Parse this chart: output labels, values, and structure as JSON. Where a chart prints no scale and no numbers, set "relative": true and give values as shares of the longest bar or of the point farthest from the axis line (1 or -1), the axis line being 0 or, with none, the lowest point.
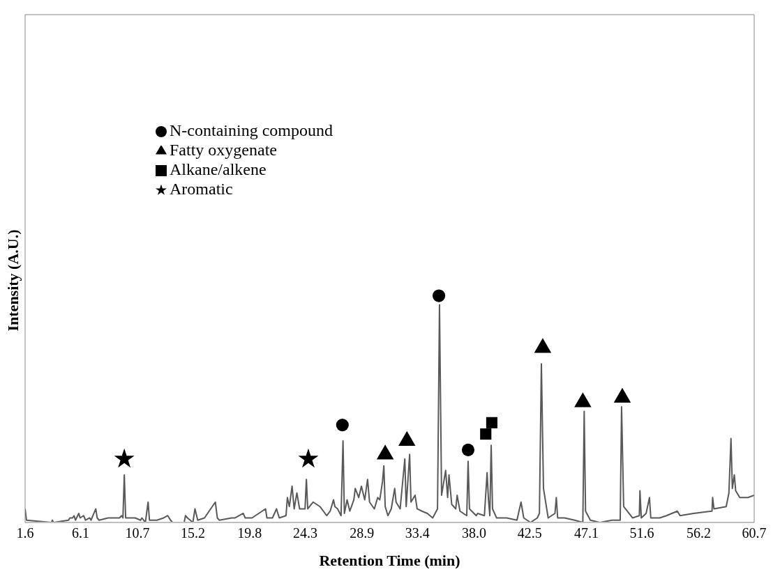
{
  "chart_data": {
    "type": "line",
    "xlabel": "Retention Time (min)",
    "ylabel": "Intensity (A.U.)",
    "relative": true,
    "grid": false,
    "legend": "top left",
    "xlim": [
      1.6,
      60.7
    ],
    "xticks": [
      1.6,
      6.1,
      10.7,
      15.2,
      19.8,
      24.3,
      28.9,
      33.4,
      {
        "value": 38,
        "label": "38.0"
      },
      42.5,
      47.1,
      51.6,
      56.2,
      60.7
    ],
    "series": [
      {
        "color": "#595959",
        "marker": "none",
        "x": [
          1.6,
          1.71,
          3.75,
          3.8,
          3.91,
          5.12,
          5.23,
          5.45,
          5.57,
          5.68,
          5.95,
          6.06,
          6.34,
          6.5,
          6.83,
          6.94,
          7.33,
          7.44,
          7.6,
          8.32,
          8.54,
          9.25,
          9.42,
          9.53,
          9.64,
          9.75,
          10.08,
          10.52,
          10.96,
          11.07,
          11.35,
          11.57,
          11.68,
          12.28,
          12.83,
          13.16,
          13.39,
          13.55,
          14.49,
          14.6,
          14.76,
          15.2,
          15.37,
          15.59,
          16.14,
          17.02,
          17.18,
          17.35,
          18.34,
          18.62,
          19.28,
          19.44,
          19.99,
          21.09,
          21.2,
          21.65,
          21.98,
          22.2,
          22.75,
          22.86,
          23.02,
          23.24,
          23.41,
          23.63,
          23.85,
          24.29,
          24.4,
          24.51,
          24.95,
          25.5,
          26.05,
          26.33,
          26.6,
          26.71,
          26.93,
          27.21,
          27.37,
          27.48,
          27.7,
          27.92,
          28.25,
          28.36,
          28.64,
          28.86,
          29.13,
          29.36,
          29.52,
          29.91,
          30.18,
          30.35,
          30.57,
          30.68,
          30.79,
          31.01,
          31.28,
          31.56,
          31.67,
          32,
          32.38,
          32.49,
          32.77,
          32.88,
          33.21,
          33.38,
          33.76,
          34.2,
          34.64,
          35.03,
          35.19,
          35.36,
          35.69,
          35.85,
          35.96,
          36.18,
          36.51,
          36.62,
          36.85,
          37.4,
          37.51,
          37.62,
          38.17,
          38.28,
          38.83,
          39.05,
          39.16,
          39.27,
          39.38,
          39.49,
          39.82,
          40.37,
          40.64,
          41.47,
          41.8,
          42.02,
          42.57,
          43.12,
          43.29,
          43.45,
          43.62,
          44,
          44.55,
          44.66,
          44.77,
          45.33,
          46.15,
          46.81,
          46.92,
          47.03,
          47.42,
          48.19,
          49.18,
          49.84,
          49.95,
          50.12,
          50.84,
          51.39,
          51.44,
          51.55,
          51.94,
          52.21,
          52.32,
          53.04,
          53.59,
          54.47,
          54.69,
          55.79,
          57.28,
          57.33,
          57.44,
          58.43,
          58.65,
          58.82,
          58.93,
          59.09,
          59.2,
          59.53,
          60.19,
          60.7
        ],
        "values": [
          0.06,
          0.01,
          0,
          0.01,
          0,
          0.01,
          0.02,
          0.02,
          0.03,
          0.01,
          0.04,
          0.02,
          0.03,
          0.01,
          0.02,
          0.01,
          0.06,
          0.02,
          0.01,
          0.02,
          0.02,
          0.02,
          0.03,
          0.02,
          0.21,
          0.02,
          0.02,
          0.02,
          0.01,
          0.02,
          0,
          0.09,
          0.01,
          0.01,
          0.02,
          0.03,
          0.01,
          0,
          0,
          0.03,
          0.02,
          0,
          0.06,
          0.01,
          0.02,
          0.09,
          0.02,
          0.01,
          0.02,
          0.02,
          0.04,
          0.02,
          0.02,
          0.06,
          0.02,
          0.02,
          0.06,
          0.02,
          0.03,
          0.11,
          0.07,
          0.16,
          0.06,
          0.13,
          0.06,
          0.06,
          0.19,
          0.06,
          0.09,
          0.07,
          0.03,
          0.05,
          0.1,
          0.07,
          0.06,
          0.03,
          0.36,
          0.04,
          0.1,
          0.05,
          0.1,
          0.15,
          0.11,
          0.16,
          0.1,
          0.19,
          0.09,
          0.06,
          0.11,
          0.1,
          0.18,
          0.25,
          0.07,
          0.03,
          0.06,
          0.15,
          0.09,
          0.06,
          0.28,
          0.07,
          0.3,
          0.09,
          0.12,
          0.06,
          0.05,
          0.04,
          0.02,
          0.06,
          0.96,
          0.12,
          0.23,
          0.11,
          0.21,
          0.08,
          0.06,
          0.12,
          0.05,
          0.03,
          0.27,
          0.06,
          0.03,
          0.04,
          0.03,
          0.22,
          0.1,
          0.03,
          0.34,
          0.06,
          0.02,
          0.02,
          0.02,
          0.01,
          0.09,
          0.02,
          0,
          0.02,
          0.04,
          0.7,
          0.15,
          0.02,
          0.04,
          0.11,
          0.02,
          0.02,
          0.01,
          0,
          0.49,
          0.05,
          0.01,
          0,
          0.01,
          0.01,
          0.51,
          0.07,
          0.02,
          0.03,
          0.14,
          0.02,
          0.04,
          0.11,
          0.02,
          0.02,
          0.03,
          0.05,
          0.03,
          0.04,
          0.05,
          0.11,
          0.06,
          0.07,
          0.13,
          0.37,
          0.15,
          0.21,
          0.14,
          0.11,
          0.11,
          0.12
        ]
      },
      {
        "type": "scatter",
        "name": "N-containing compound",
        "color": "#000000",
        "marker": "circle",
        "x": [
          27.32,
          35.14,
          37.51
        ],
        "values": [
          0.43,
          1,
          0.32
        ]
      },
      {
        "type": "scatter",
        "name": "Fatty oxygenate",
        "color": "#000000",
        "marker": "triangle",
        "x": [
          30.79,
          32.55,
          43.56,
          46.81,
          50.01
        ],
        "values": [
          0.3,
          0.36,
          0.77,
          0.53,
          0.55
        ]
      },
      {
        "type": "scatter",
        "name": "Alkane/alkene",
        "color": "#000000",
        "marker": "square",
        "x": [
          38.94,
          39.43
        ],
        "values": [
          0.39,
          0.44
        ]
      },
      {
        "type": "scatter",
        "name": "Aromatic",
        "color": "#000000",
        "marker": "star",
        "x": [
          9.64,
          24.56
        ],
        "values": [
          0.28,
          0.28
        ]
      }
    ]
  }
}
